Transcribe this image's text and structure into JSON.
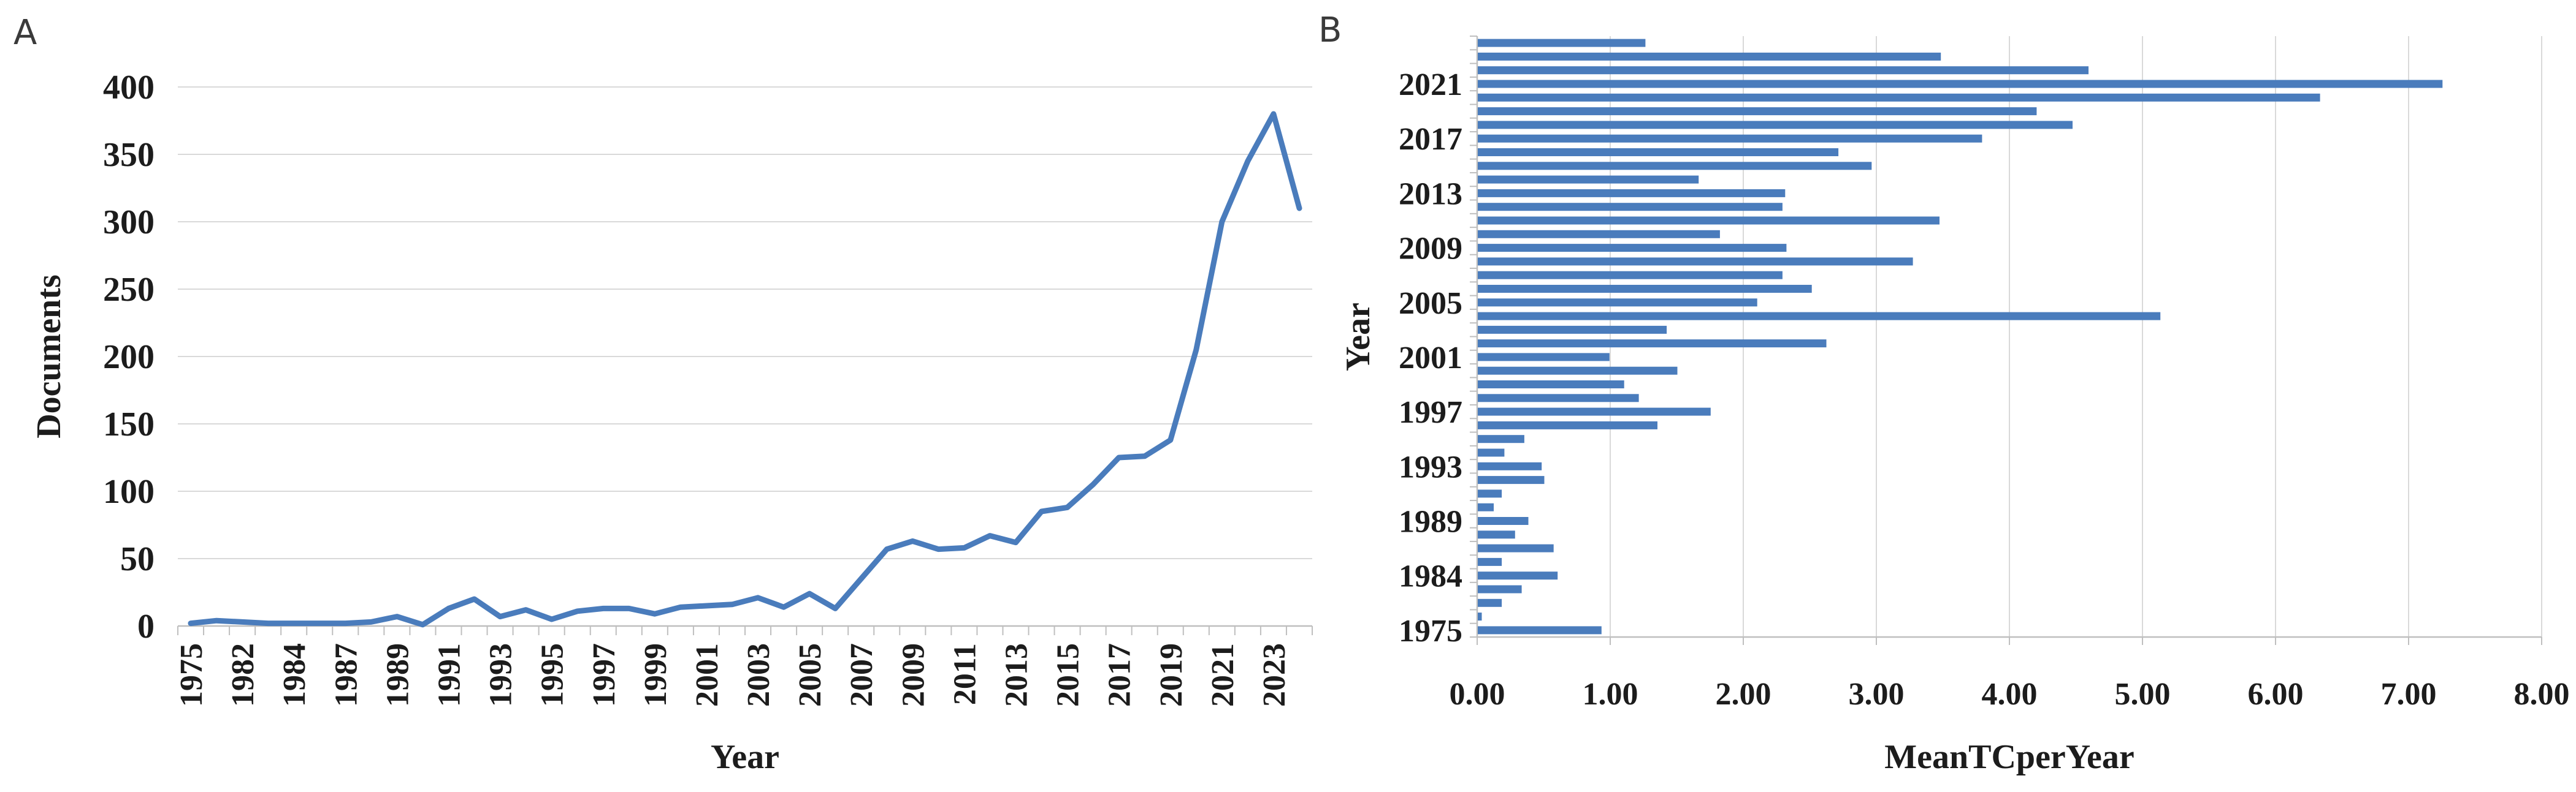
{
  "figure": {
    "description": "Two-panel bibliometric figure: annual scientific production (line) and mean total citations per year (horizontal bars)",
    "background": "#ffffff"
  },
  "panels": {
    "a": {
      "letter": "A"
    },
    "b": {
      "letter": "B"
    }
  },
  "colors": {
    "series_blue": "#4A7CBC",
    "gridline": "#D9D9D9",
    "axis": "#BFBFBF",
    "text": "#1C1C1C",
    "panel_letter": "#3A3A3A"
  },
  "chart_data": [
    {
      "id": "A",
      "type": "line",
      "title": "",
      "xlabel": "Year",
      "ylabel": "Documents",
      "ylim": [
        0,
        400
      ],
      "grid": "horizontal",
      "legend": "none",
      "x": [
        1975,
        1981,
        1982,
        1983,
        1984,
        1986,
        1987,
        1988,
        1989,
        1990,
        1991,
        1992,
        1993,
        1994,
        1995,
        1996,
        1997,
        1998,
        1999,
        2000,
        2001,
        2002,
        2003,
        2004,
        2005,
        2006,
        2007,
        2008,
        2009,
        2010,
        2011,
        2012,
        2013,
        2014,
        2015,
        2016,
        2017,
        2018,
        2019,
        2020,
        2021,
        2022,
        2023,
        2024
      ],
      "values": [
        2,
        4,
        3,
        2,
        2,
        2,
        2,
        3,
        7,
        1,
        13,
        20,
        7,
        12,
        5,
        11,
        13,
        13,
        9,
        14,
        15,
        16,
        21,
        14,
        24,
        13,
        35,
        57,
        63,
        57,
        58,
        67,
        62,
        85,
        88,
        105,
        125,
        126,
        138,
        205,
        300,
        345,
        380,
        310
      ],
      "y_tick_labels": [
        "0",
        "50",
        "100",
        "150",
        "200",
        "250",
        "300",
        "350",
        "400"
      ],
      "x_tick_labels": [
        {
          "index": 0,
          "label": "1975"
        },
        {
          "index": 2,
          "label": "1982"
        },
        {
          "index": 4,
          "label": "1984"
        },
        {
          "index": 6,
          "label": "1987"
        },
        {
          "index": 8,
          "label": "1989"
        },
        {
          "index": 10,
          "label": "1991"
        },
        {
          "index": 12,
          "label": "1993"
        },
        {
          "index": 14,
          "label": "1995"
        },
        {
          "index": 16,
          "label": "1997"
        },
        {
          "index": 18,
          "label": "1999"
        },
        {
          "index": 20,
          "label": "2001"
        },
        {
          "index": 22,
          "label": "2003"
        },
        {
          "index": 24,
          "label": "2005"
        },
        {
          "index": 26,
          "label": "2007"
        },
        {
          "index": 28,
          "label": "2009"
        },
        {
          "index": 30,
          "label": "2011"
        },
        {
          "index": 32,
          "label": "2013"
        },
        {
          "index": 34,
          "label": "2015"
        },
        {
          "index": 36,
          "label": "2017"
        },
        {
          "index": 38,
          "label": "2019"
        },
        {
          "index": 40,
          "label": "2021"
        },
        {
          "index": 42,
          "label": "2023"
        }
      ]
    },
    {
      "id": "B",
      "type": "bar",
      "orientation": "horizontal",
      "title": "",
      "xlabel": "MeanTCperYear",
      "ylabel": "Year",
      "xlim": [
        0,
        8
      ],
      "grid": "vertical",
      "legend": "none",
      "category_order": "latest-at-top",
      "categories": [
        2024,
        2023,
        2022,
        2021,
        2020,
        2019,
        2018,
        2017,
        2016,
        2015,
        2014,
        2013,
        2012,
        2011,
        2010,
        2009,
        2008,
        2007,
        2006,
        2005,
        2004,
        2003,
        2002,
        2001,
        2000,
        1999,
        1998,
        1997,
        1996,
        1995,
        1994,
        1993,
        1992,
        1991,
        1990,
        1989,
        1988,
        1987,
        1986,
        1984,
        1983,
        1982,
        1981,
        1975
      ],
      "values": [
        1.26,
        3.48,
        4.59,
        7.25,
        6.33,
        4.2,
        4.47,
        3.79,
        2.71,
        2.96,
        1.66,
        2.31,
        2.29,
        3.47,
        1.82,
        2.32,
        3.27,
        2.29,
        2.51,
        2.1,
        5.13,
        1.42,
        2.62,
        0.99,
        1.5,
        1.1,
        1.21,
        1.75,
        1.35,
        0.35,
        0.2,
        0.48,
        0.5,
        0.18,
        0.12,
        0.38,
        0.28,
        0.57,
        0.18,
        0.6,
        0.33,
        0.18,
        0.03,
        0.93
      ],
      "y_tick_labels": [
        {
          "index": 3,
          "label": "2021"
        },
        {
          "index": 7,
          "label": "2017"
        },
        {
          "index": 11,
          "label": "2013"
        },
        {
          "index": 15,
          "label": "2009"
        },
        {
          "index": 19,
          "label": "2005"
        },
        {
          "index": 23,
          "label": "2001"
        },
        {
          "index": 27,
          "label": "1997"
        },
        {
          "index": 31,
          "label": "1993"
        },
        {
          "index": 35,
          "label": "1989"
        },
        {
          "index": 39,
          "label": "1984"
        },
        {
          "index": 43,
          "label": "1975"
        }
      ],
      "x_tick_labels": [
        "0.00",
        "1.00",
        "2.00",
        "3.00",
        "4.00",
        "5.00",
        "6.00",
        "7.00",
        "8.00"
      ]
    }
  ]
}
